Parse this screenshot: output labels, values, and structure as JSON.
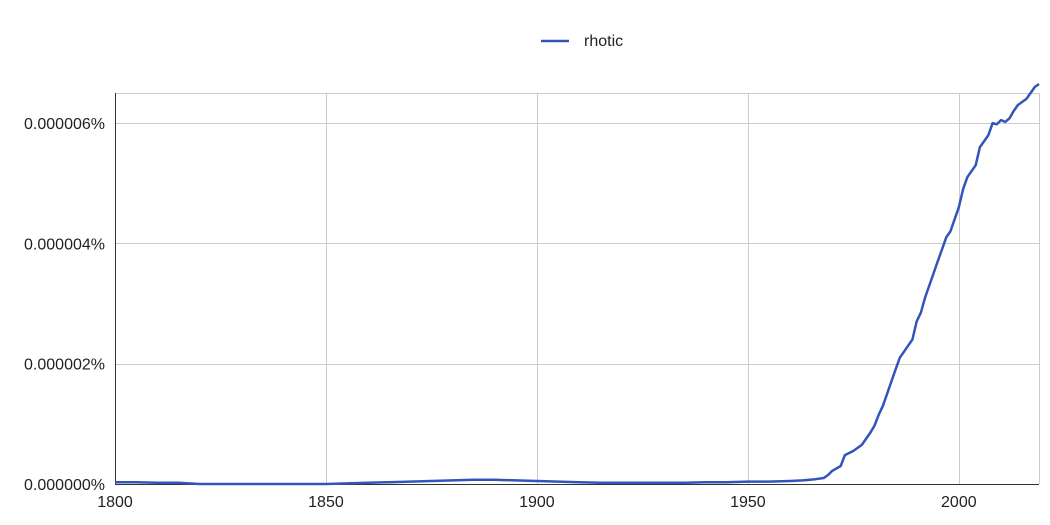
{
  "chart_data": {
    "type": "line",
    "title": "",
    "xlabel": "",
    "ylabel": "",
    "xlim": [
      1800,
      2019
    ],
    "ylim": [
      0,
      6.5e-06
    ],
    "x_ticks": [
      1800,
      1850,
      1900,
      1950,
      2000
    ],
    "x_tick_labels": [
      "1800",
      "1850",
      "1900",
      "1950",
      "2000"
    ],
    "y_ticks": [
      0,
      2e-06,
      4e-06,
      6e-06
    ],
    "y_tick_labels": [
      "0.000000%",
      "0.000002%",
      "0.000004%",
      "0.000006%"
    ],
    "grid": true,
    "legend_position": "top-center",
    "series": [
      {
        "name": "rhotic",
        "color": "#3355bb",
        "points": [
          [
            1800,
            3e-08
          ],
          [
            1805,
            3e-08
          ],
          [
            1810,
            2e-08
          ],
          [
            1815,
            2e-08
          ],
          [
            1820,
            0.0
          ],
          [
            1830,
            0.0
          ],
          [
            1840,
            0.0
          ],
          [
            1850,
            0.0
          ],
          [
            1855,
            1e-08
          ],
          [
            1860,
            2e-08
          ],
          [
            1865,
            3e-08
          ],
          [
            1870,
            4e-08
          ],
          [
            1875,
            5e-08
          ],
          [
            1880,
            6e-08
          ],
          [
            1885,
            7e-08
          ],
          [
            1890,
            7e-08
          ],
          [
            1895,
            6e-08
          ],
          [
            1900,
            5e-08
          ],
          [
            1905,
            4e-08
          ],
          [
            1910,
            3e-08
          ],
          [
            1915,
            2e-08
          ],
          [
            1920,
            2e-08
          ],
          [
            1925,
            2e-08
          ],
          [
            1930,
            2e-08
          ],
          [
            1935,
            2e-08
          ],
          [
            1940,
            3e-08
          ],
          [
            1945,
            3e-08
          ],
          [
            1950,
            4e-08
          ],
          [
            1955,
            4e-08
          ],
          [
            1960,
            5e-08
          ],
          [
            1963,
            6e-08
          ],
          [
            1966,
            8e-08
          ],
          [
            1968,
            1e-07
          ],
          [
            1969,
            1.5e-07
          ],
          [
            1970,
            2.2e-07
          ],
          [
            1972,
            3e-07
          ],
          [
            1973,
            4.8e-07
          ],
          [
            1975,
            5.5e-07
          ],
          [
            1977,
            6.5e-07
          ],
          [
            1978,
            7.5e-07
          ],
          [
            1979,
            8.5e-07
          ],
          [
            1980,
            9.7e-07
          ],
          [
            1981,
            1.15e-06
          ],
          [
            1982,
            1.3e-06
          ],
          [
            1983,
            1.5e-06
          ],
          [
            1984,
            1.7e-06
          ],
          [
            1985,
            1.9e-06
          ],
          [
            1986,
            2.1e-06
          ],
          [
            1987,
            2.2e-06
          ],
          [
            1988,
            2.3e-06
          ],
          [
            1989,
            2.4e-06
          ],
          [
            1990,
            2.7e-06
          ],
          [
            1991,
            2.85e-06
          ],
          [
            1992,
            3.1e-06
          ],
          [
            1993,
            3.3e-06
          ],
          [
            1994,
            3.5e-06
          ],
          [
            1995,
            3.7e-06
          ],
          [
            1996,
            3.9e-06
          ],
          [
            1997,
            4.1e-06
          ],
          [
            1998,
            4.2e-06
          ],
          [
            1999,
            4.4e-06
          ],
          [
            2000,
            4.6e-06
          ],
          [
            2001,
            4.9e-06
          ],
          [
            2002,
            5.1e-06
          ],
          [
            2003,
            5.2e-06
          ],
          [
            2004,
            5.3e-06
          ],
          [
            2005,
            5.6e-06
          ],
          [
            2006,
            5.7e-06
          ],
          [
            2007,
            5.8e-06
          ],
          [
            2008,
            6e-06
          ],
          [
            2009,
            5.98e-06
          ],
          [
            2010,
            6.05e-06
          ],
          [
            2011,
            6.02e-06
          ],
          [
            2012,
            6.08e-06
          ],
          [
            2013,
            6.2e-06
          ],
          [
            2014,
            6.3e-06
          ],
          [
            2015,
            6.35e-06
          ],
          [
            2016,
            6.4e-06
          ],
          [
            2017,
            6.5e-06
          ],
          [
            2018,
            6.6e-06
          ],
          [
            2019,
            6.65e-06
          ]
        ]
      }
    ]
  }
}
